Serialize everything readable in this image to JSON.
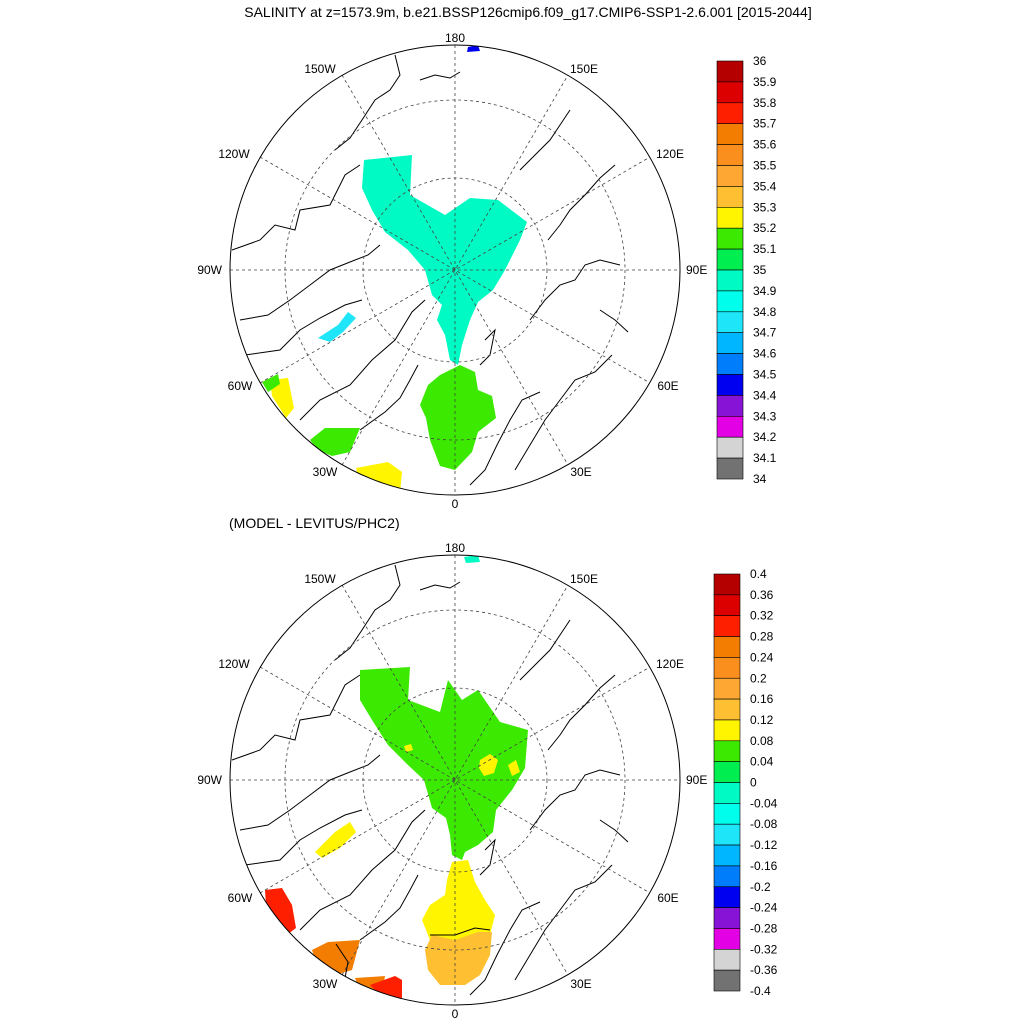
{
  "title": "SALINITY at z=1573.9m, b.e21.BSSP126cmip6.f09_g17.CMIP6-SSP1-2.6.001 [2015-2044]",
  "subtitle": "(MODEL - LEVITUS/PHC2)",
  "map_labels": {
    "top": "180",
    "bottom": "0",
    "left": "90W",
    "right": "90E",
    "w150": "150W",
    "e150": "150E",
    "w120": "120W",
    "e120": "120E",
    "w60": "60W",
    "e60": "60E",
    "w30": "30W",
    "e30": "30E"
  },
  "colorbar_top": {
    "labels": [
      "36",
      "35.9",
      "35.8",
      "35.7",
      "35.6",
      "35.5",
      "35.4",
      "35.3",
      "35.2",
      "35.1",
      "35",
      "34.9",
      "34.8",
      "34.7",
      "34.6",
      "34.5",
      "34.4",
      "34.3",
      "34.2",
      "34.1",
      "34"
    ],
    "colors": [
      "#b50000",
      "#dd0000",
      "#fe1f00",
      "#f27d00",
      "#fb8f1d",
      "#ffa733",
      "#fec032",
      "#fff500",
      "#3bea00",
      "#00ee50",
      "#00fac3",
      "#00feec",
      "#1ee5f8",
      "#00b7ff",
      "#007dfa",
      "#0000f0",
      "#8713d6",
      "#e400e4",
      "#d4d4d4",
      "#727272"
    ]
  },
  "colorbar_bottom": {
    "labels": [
      "0.4",
      "0.36",
      "0.32",
      "0.28",
      "0.24",
      "0.2",
      "0.16",
      "0.12",
      "0.08",
      "0.04",
      "0",
      "-0.04",
      "-0.08",
      "-0.12",
      "-0.16",
      "-0.2",
      "-0.24",
      "-0.28",
      "-0.32",
      "-0.36",
      "-0.4"
    ],
    "colors": [
      "#b50000",
      "#dd0000",
      "#fe1f00",
      "#f27d00",
      "#fb8f1d",
      "#ffa733",
      "#fec032",
      "#fff500",
      "#3bea00",
      "#00ee50",
      "#00fac3",
      "#00feec",
      "#1ee5f8",
      "#00b7ff",
      "#007dfa",
      "#0000f0",
      "#8713d6",
      "#e400e4",
      "#d4d4d4",
      "#727272"
    ]
  },
  "fields": {
    "top_arctic": "#00fac3",
    "top_fram": "#3bea00",
    "top_baffin": "#1ee5f8",
    "top_labrador_small": "#fff500",
    "top_labrador_green": "#3bea00",
    "top_irminger": "#3bea00",
    "top_iceland": "#fff500",
    "top_bering": "#0000f0",
    "bot_arctic": "#3bea00",
    "bot_nordic": "#fff500",
    "bot_nordic_low": "#fec032",
    "bot_baffin": "#fff500",
    "bot_labrador": "#fe1f00",
    "bot_irminger": "#f27d00",
    "bot_iceland_orange": "#f27d00",
    "bot_iceland_red": "#fe1f00",
    "bot_bering": "#00fac3",
    "bot_spot": "#fff500"
  }
}
